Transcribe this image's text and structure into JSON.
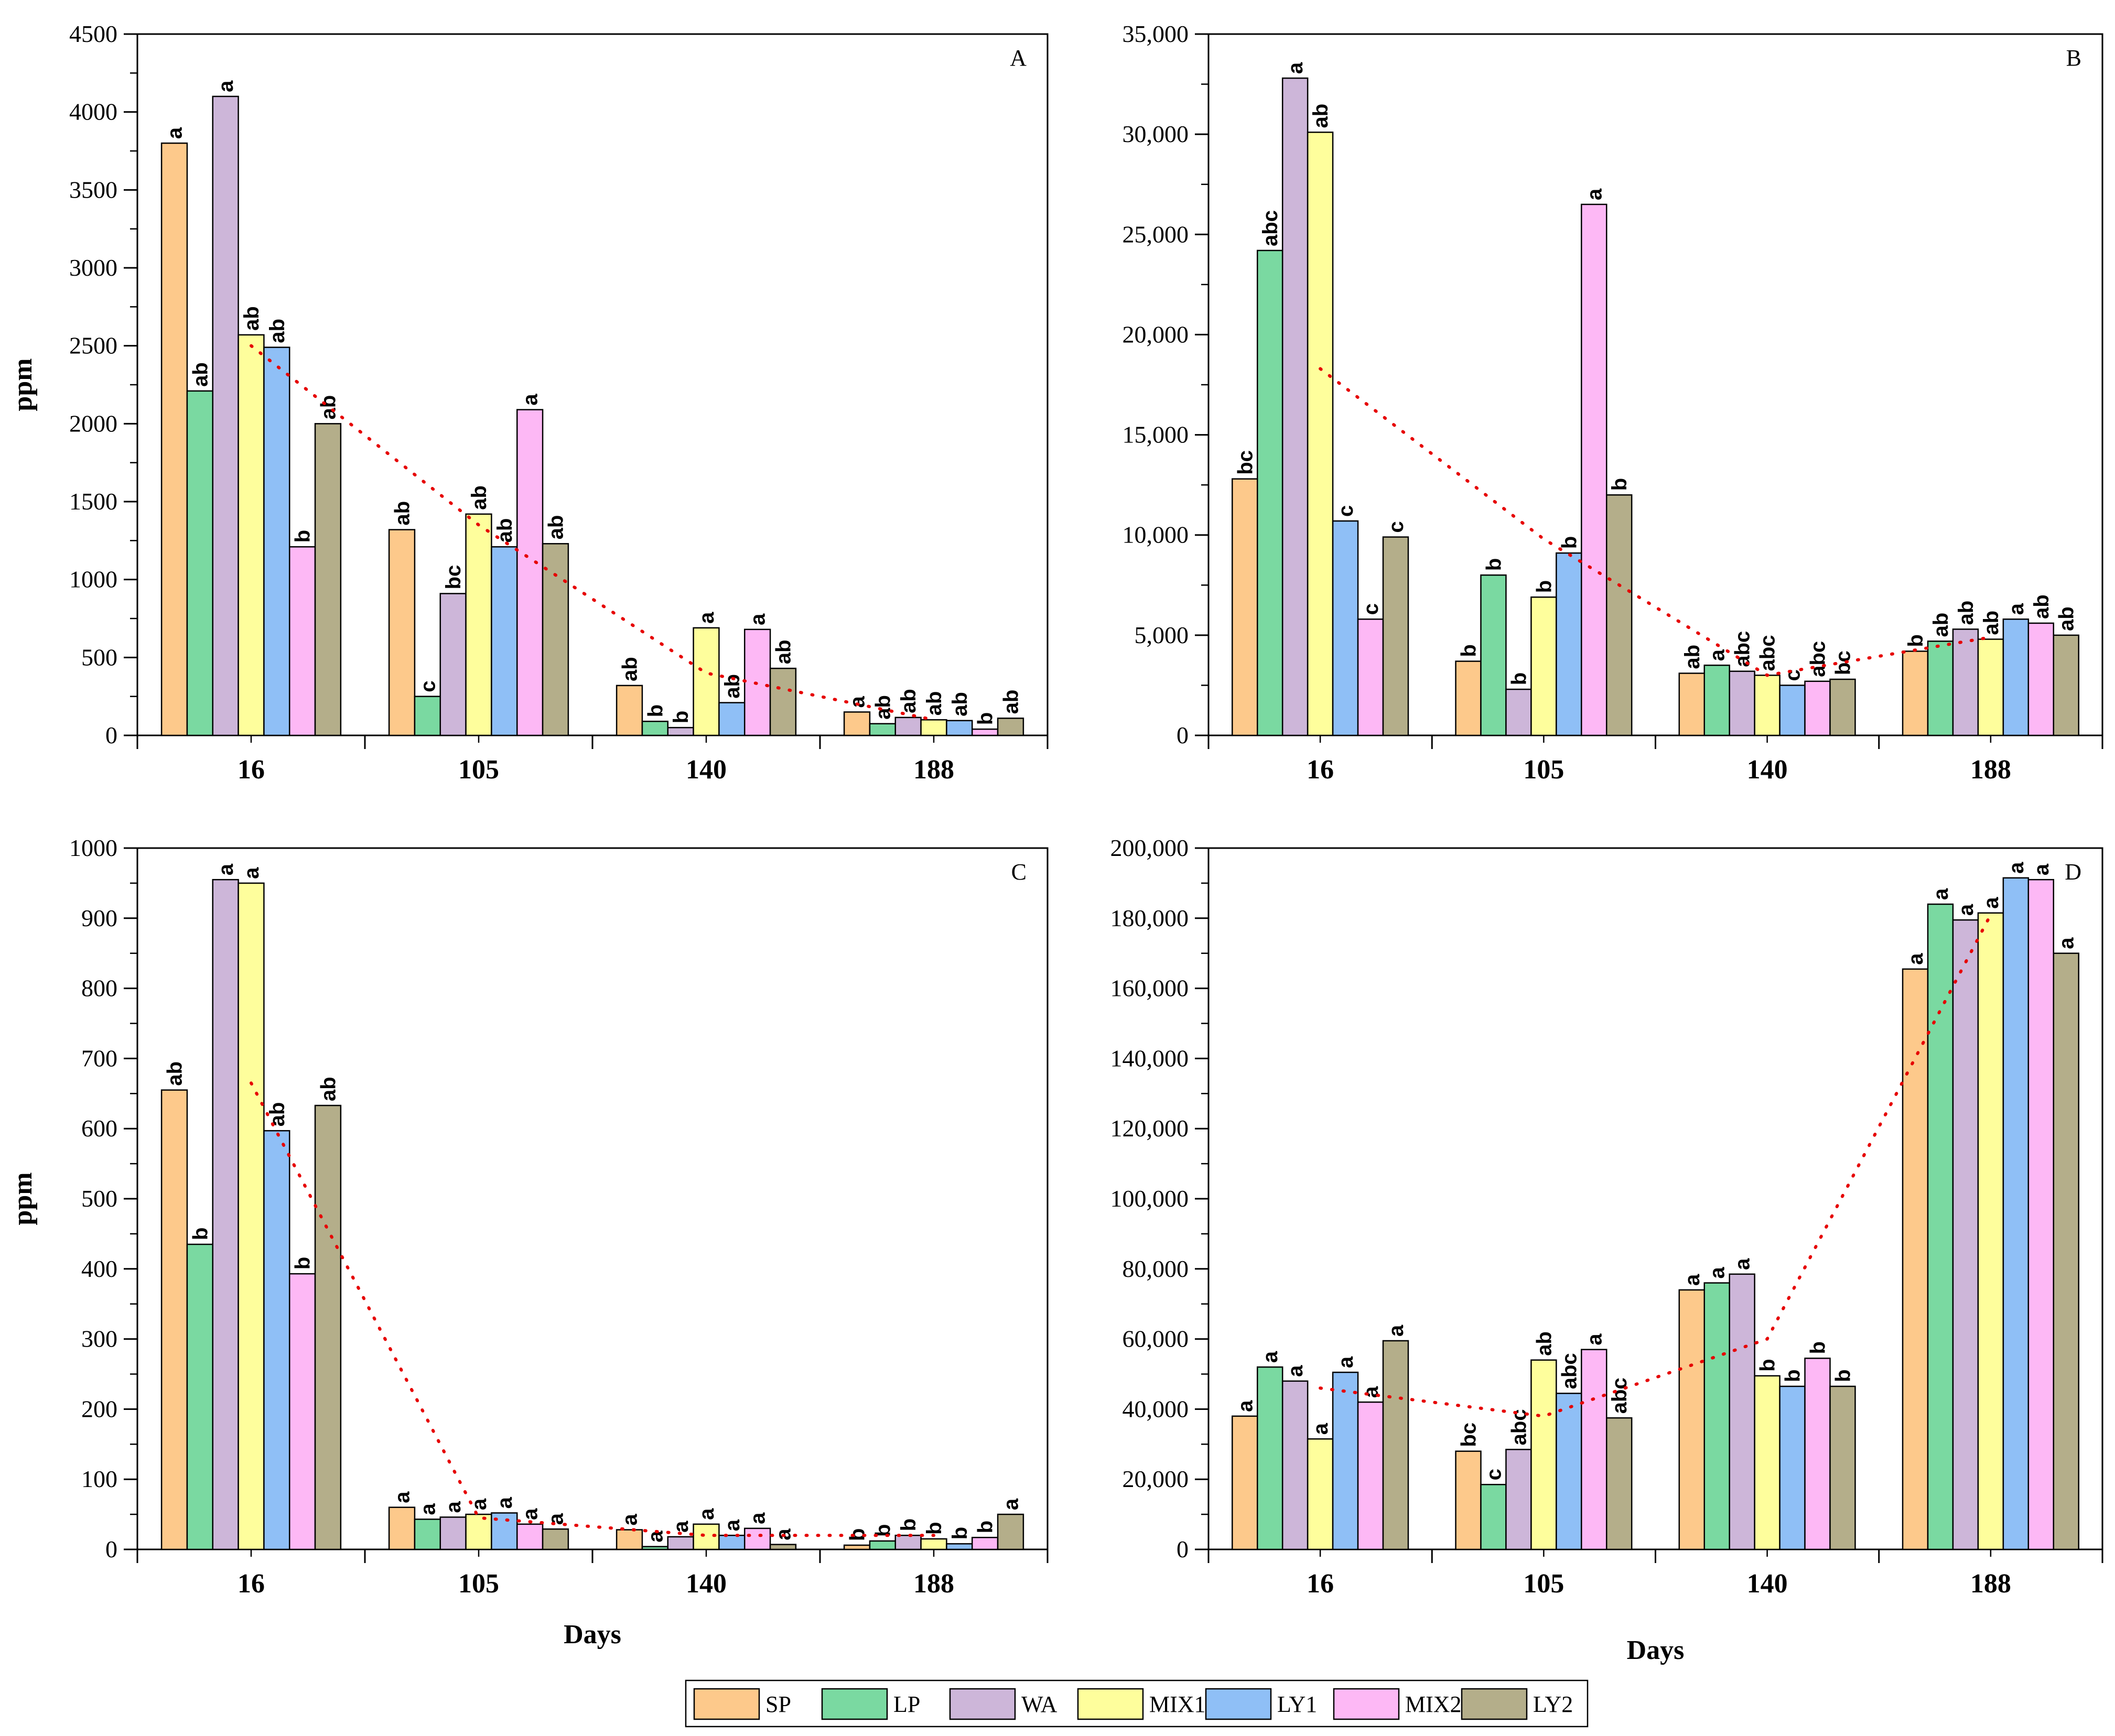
{
  "series_colors": {
    "SP": "#FDC98B",
    "LP": "#7AD9A1",
    "WA": "#CDB6D9",
    "MIX1": "#FEFE9C",
    "LY1": "#8FBFF6",
    "MIX2": "#FDB8F5",
    "LY2": "#B4AE8A"
  },
  "trend_color": "#E60000",
  "legend": {
    "items": [
      "SP",
      "LP",
      "WA",
      "MIX1",
      "LY1",
      "MIX2",
      "LY2"
    ]
  },
  "chart_data": [
    {
      "type": "bar",
      "panel": "A",
      "categories": [
        "16",
        "105",
        "140",
        "188"
      ],
      "xlabel": "",
      "ylabel": "ppm",
      "ylim": [
        0,
        4500
      ],
      "yticks": [
        0,
        500,
        1000,
        1500,
        2000,
        2500,
        3000,
        3500,
        4000,
        4500
      ],
      "ytick_labels": [
        "0",
        "500",
        "1000",
        "1500",
        "2000",
        "2500",
        "3000",
        "3500",
        "4000",
        "4500"
      ],
      "series": [
        {
          "name": "SP",
          "values": [
            3800,
            1320,
            320,
            150
          ],
          "labels": [
            "a",
            "ab",
            "ab",
            "a"
          ]
        },
        {
          "name": "LP",
          "values": [
            2210,
            250,
            90,
            75
          ],
          "labels": [
            "ab",
            "c",
            "b",
            "ab"
          ]
        },
        {
          "name": "WA",
          "values": [
            4100,
            910,
            50,
            115
          ],
          "labels": [
            "a",
            "bc",
            "b",
            "ab"
          ]
        },
        {
          "name": "MIX1",
          "values": [
            2570,
            1420,
            690,
            100
          ],
          "labels": [
            "ab",
            "ab",
            "a",
            "ab"
          ]
        },
        {
          "name": "LY1",
          "values": [
            2490,
            1210,
            210,
            95
          ],
          "labels": [
            "ab",
            "ab",
            "ab",
            "ab"
          ]
        },
        {
          "name": "MIX2",
          "values": [
            1210,
            2090,
            680,
            40
          ],
          "labels": [
            "b",
            "a",
            "a",
            "b"
          ]
        },
        {
          "name": "LY2",
          "values": [
            2000,
            1230,
            430,
            110
          ],
          "labels": [
            "ab",
            "ab",
            "ab",
            "ab"
          ]
        }
      ],
      "trend": [
        2500,
        1350,
        400,
        100
      ]
    },
    {
      "type": "bar",
      "panel": "B",
      "categories": [
        "16",
        "105",
        "140",
        "188"
      ],
      "xlabel": "",
      "ylabel": "",
      "ylim": [
        0,
        35000
      ],
      "yticks": [
        0,
        5000,
        10000,
        15000,
        20000,
        25000,
        30000,
        35000
      ],
      "ytick_labels": [
        "0",
        "5,000",
        "10,000",
        "15,000",
        "20,000",
        "25,000",
        "30,000",
        "35,000"
      ],
      "series": [
        {
          "name": "SP",
          "values": [
            12800,
            3700,
            3100,
            4200
          ],
          "labels": [
            "bc",
            "b",
            "ab",
            "b"
          ]
        },
        {
          "name": "LP",
          "values": [
            24200,
            8000,
            3500,
            4700
          ],
          "labels": [
            "abc",
            "b",
            "a",
            "ab"
          ]
        },
        {
          "name": "WA",
          "values": [
            32800,
            2300,
            3200,
            5300
          ],
          "labels": [
            "a",
            "b",
            "abc",
            "ab"
          ]
        },
        {
          "name": "MIX1",
          "values": [
            30100,
            6900,
            3000,
            4800
          ],
          "labels": [
            "ab",
            "b",
            "abc",
            "ab"
          ]
        },
        {
          "name": "LY1",
          "values": [
            10700,
            9100,
            2500,
            5800
          ],
          "labels": [
            "c",
            "b",
            "c",
            "a"
          ]
        },
        {
          "name": "MIX2",
          "values": [
            5800,
            26500,
            2700,
            5600
          ],
          "labels": [
            "c",
            "a",
            "abc",
            "ab"
          ]
        },
        {
          "name": "LY2",
          "values": [
            9900,
            12000,
            2800,
            5000
          ],
          "labels": [
            "c",
            "b",
            "bc",
            "ab"
          ]
        }
      ],
      "trend": [
        18300,
        9800,
        3000,
        4900
      ]
    },
    {
      "type": "bar",
      "panel": "C",
      "categories": [
        "16",
        "105",
        "140",
        "188"
      ],
      "xlabel": "Days",
      "ylabel": "ppm",
      "ylim": [
        0,
        1000
      ],
      "yticks": [
        0,
        100,
        200,
        300,
        400,
        500,
        600,
        700,
        800,
        900,
        1000
      ],
      "ytick_labels": [
        "0",
        "100",
        "200",
        "300",
        "400",
        "500",
        "600",
        "700",
        "800",
        "900",
        "1000"
      ],
      "series": [
        {
          "name": "SP",
          "values": [
            655,
            60,
            28,
            6
          ],
          "labels": [
            "ab",
            "a",
            "a",
            "b"
          ]
        },
        {
          "name": "LP",
          "values": [
            435,
            43,
            4,
            12
          ],
          "labels": [
            "b",
            "a",
            "a",
            "b"
          ]
        },
        {
          "name": "WA",
          "values": [
            955,
            46,
            18,
            20
          ],
          "labels": [
            "a",
            "a",
            "a",
            "b"
          ]
        },
        {
          "name": "MIX1",
          "values": [
            950,
            50,
            36,
            15
          ],
          "labels": [
            "a",
            "a",
            "a",
            "b"
          ]
        },
        {
          "name": "LY1",
          "values": [
            597,
            52,
            20,
            8
          ],
          "labels": [
            "ab",
            "a",
            "a",
            "b"
          ]
        },
        {
          "name": "MIX2",
          "values": [
            393,
            36,
            30,
            17
          ],
          "labels": [
            "b",
            "a",
            "a",
            "b"
          ]
        },
        {
          "name": "LY2",
          "values": [
            633,
            29,
            7,
            50
          ],
          "labels": [
            "ab",
            "a",
            "a",
            "a"
          ]
        }
      ],
      "trend": [
        665,
        45,
        20,
        20
      ]
    },
    {
      "type": "bar",
      "panel": "D",
      "categories": [
        "16",
        "105",
        "140",
        "188"
      ],
      "xlabel": "Days",
      "ylabel": "",
      "ylim": [
        0,
        200000
      ],
      "yticks": [
        0,
        20000,
        40000,
        60000,
        80000,
        100000,
        120000,
        140000,
        160000,
        180000,
        200000
      ],
      "ytick_labels": [
        "0",
        "20,000",
        "40,000",
        "60,000",
        "80,000",
        "100,000",
        "120,000",
        "140,000",
        "160,000",
        "180,000",
        "200,000"
      ],
      "series": [
        {
          "name": "SP",
          "values": [
            38000,
            28000,
            74000,
            165500
          ],
          "labels": [
            "a",
            "bc",
            "a",
            "a"
          ]
        },
        {
          "name": "LP",
          "values": [
            52000,
            18500,
            76000,
            184000
          ],
          "labels": [
            "a",
            "c",
            "a",
            "a"
          ]
        },
        {
          "name": "WA",
          "values": [
            48000,
            28500,
            78500,
            179500
          ],
          "labels": [
            "a",
            "abc",
            "a",
            "a"
          ]
        },
        {
          "name": "MIX1",
          "values": [
            31500,
            54000,
            49500,
            181500
          ],
          "labels": [
            "a",
            "ab",
            "b",
            "a"
          ]
        },
        {
          "name": "LY1",
          "values": [
            50500,
            44500,
            46500,
            191500
          ],
          "labels": [
            "a",
            "abc",
            "b",
            "a"
          ]
        },
        {
          "name": "MIX2",
          "values": [
            42000,
            57000,
            54500,
            191000
          ],
          "labels": [
            "a",
            "a",
            "b",
            "a"
          ]
        },
        {
          "name": "LY2",
          "values": [
            59500,
            37500,
            46500,
            170000
          ],
          "labels": [
            "a",
            "abc",
            "b",
            "a"
          ]
        }
      ],
      "trend": [
        46000,
        38000,
        60000,
        181000
      ]
    }
  ]
}
